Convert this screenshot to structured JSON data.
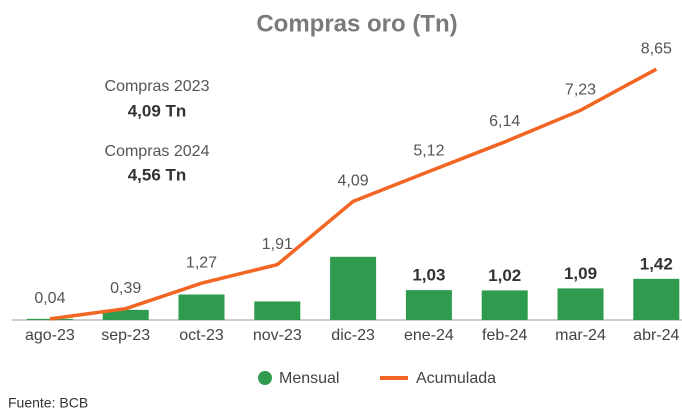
{
  "chart_data": {
    "type": "bar_line",
    "title": "Compras oro (Tn)",
    "categories": [
      "ago-23",
      "sep-23",
      "oct-23",
      "nov-23",
      "dic-23",
      "ene-24",
      "feb-24",
      "mar-24",
      "abr-24"
    ],
    "series": [
      {
        "name": "Mensual",
        "type": "bar",
        "color": "#2e9b4f",
        "values": [
          0.04,
          0.35,
          0.88,
          0.64,
          2.18,
          1.03,
          1.02,
          1.09,
          1.42
        ],
        "value_labels": [
          null,
          null,
          null,
          null,
          null,
          "1,03",
          "1,02",
          "1,09",
          "1,42"
        ]
      },
      {
        "name": "Acumulada",
        "type": "line",
        "color": "#f26522",
        "values": [
          0.04,
          0.39,
          1.27,
          1.91,
          4.09,
          5.12,
          6.14,
          7.23,
          8.65
        ],
        "value_labels": [
          "0,04",
          "0,39",
          "1,27",
          "1,91",
          "4,09",
          "5,12",
          "6,14",
          "7,23",
          "8,65"
        ]
      }
    ],
    "ylim": [
      0,
      9
    ],
    "annotations": [
      "Compras 2023",
      "4,09 Tn",
      "Compras 2024",
      "4,56 Tn"
    ],
    "source": "Fuente: BCB"
  }
}
